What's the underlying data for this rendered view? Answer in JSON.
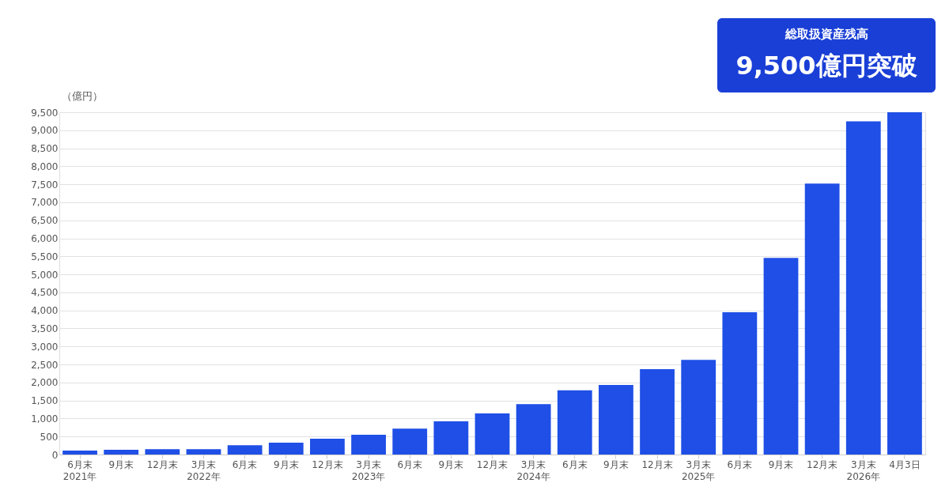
{
  "chart_data": {
    "type": "bar",
    "ylabel": "（億円）",
    "categories": [
      "6月末\n2021年",
      "9月末",
      "12月末",
      "3月末\n2022年",
      "6月末",
      "9月末",
      "12月末",
      "3月末\n2023年",
      "6月末",
      "9月末",
      "12月末",
      "3月末\n2024年",
      "6月末",
      "9月末",
      "12月末",
      "3月末\n2025年",
      "6月末",
      "9月末",
      "12月末",
      "3月末\n2026年",
      "4月3日"
    ],
    "values": [
      110,
      130,
      150,
      150,
      260,
      330,
      440,
      550,
      720,
      920,
      1140,
      1400,
      1780,
      1930,
      2370,
      2630,
      3950,
      5460,
      7520,
      9250,
      9500
    ],
    "color": "#1f4fe6",
    "ylim": [
      0,
      9500
    ],
    "yticks": [
      {
        "value": 0,
        "label": "0"
      },
      {
        "value": 500,
        "label": "500"
      },
      {
        "value": 1000,
        "label": "1,000"
      },
      {
        "value": 1500,
        "label": "1,500"
      },
      {
        "value": 2000,
        "label": "2,000"
      },
      {
        "value": 2500,
        "label": "2,500"
      },
      {
        "value": 3000,
        "label": "3,000"
      },
      {
        "value": 3500,
        "label": "3,500"
      },
      {
        "value": 4000,
        "label": "4,000"
      },
      {
        "value": 4500,
        "label": "4,500"
      },
      {
        "value": 5000,
        "label": "5,000"
      },
      {
        "value": 5500,
        "label": "5,500"
      },
      {
        "value": 6000,
        "label": "6,000"
      },
      {
        "value": 6500,
        "label": "6,500"
      },
      {
        "value": 7000,
        "label": "7,000"
      },
      {
        "value": 7500,
        "label": "7,500"
      },
      {
        "value": 8000,
        "label": "8,000"
      },
      {
        "value": 8500,
        "label": "8,500"
      },
      {
        "value": 9000,
        "label": "9,000"
      },
      {
        "value": 9500,
        "label": "9,500"
      }
    ],
    "grid": "y",
    "annotations": [
      "総取扱資産残高",
      "9,500億円突破"
    ]
  }
}
